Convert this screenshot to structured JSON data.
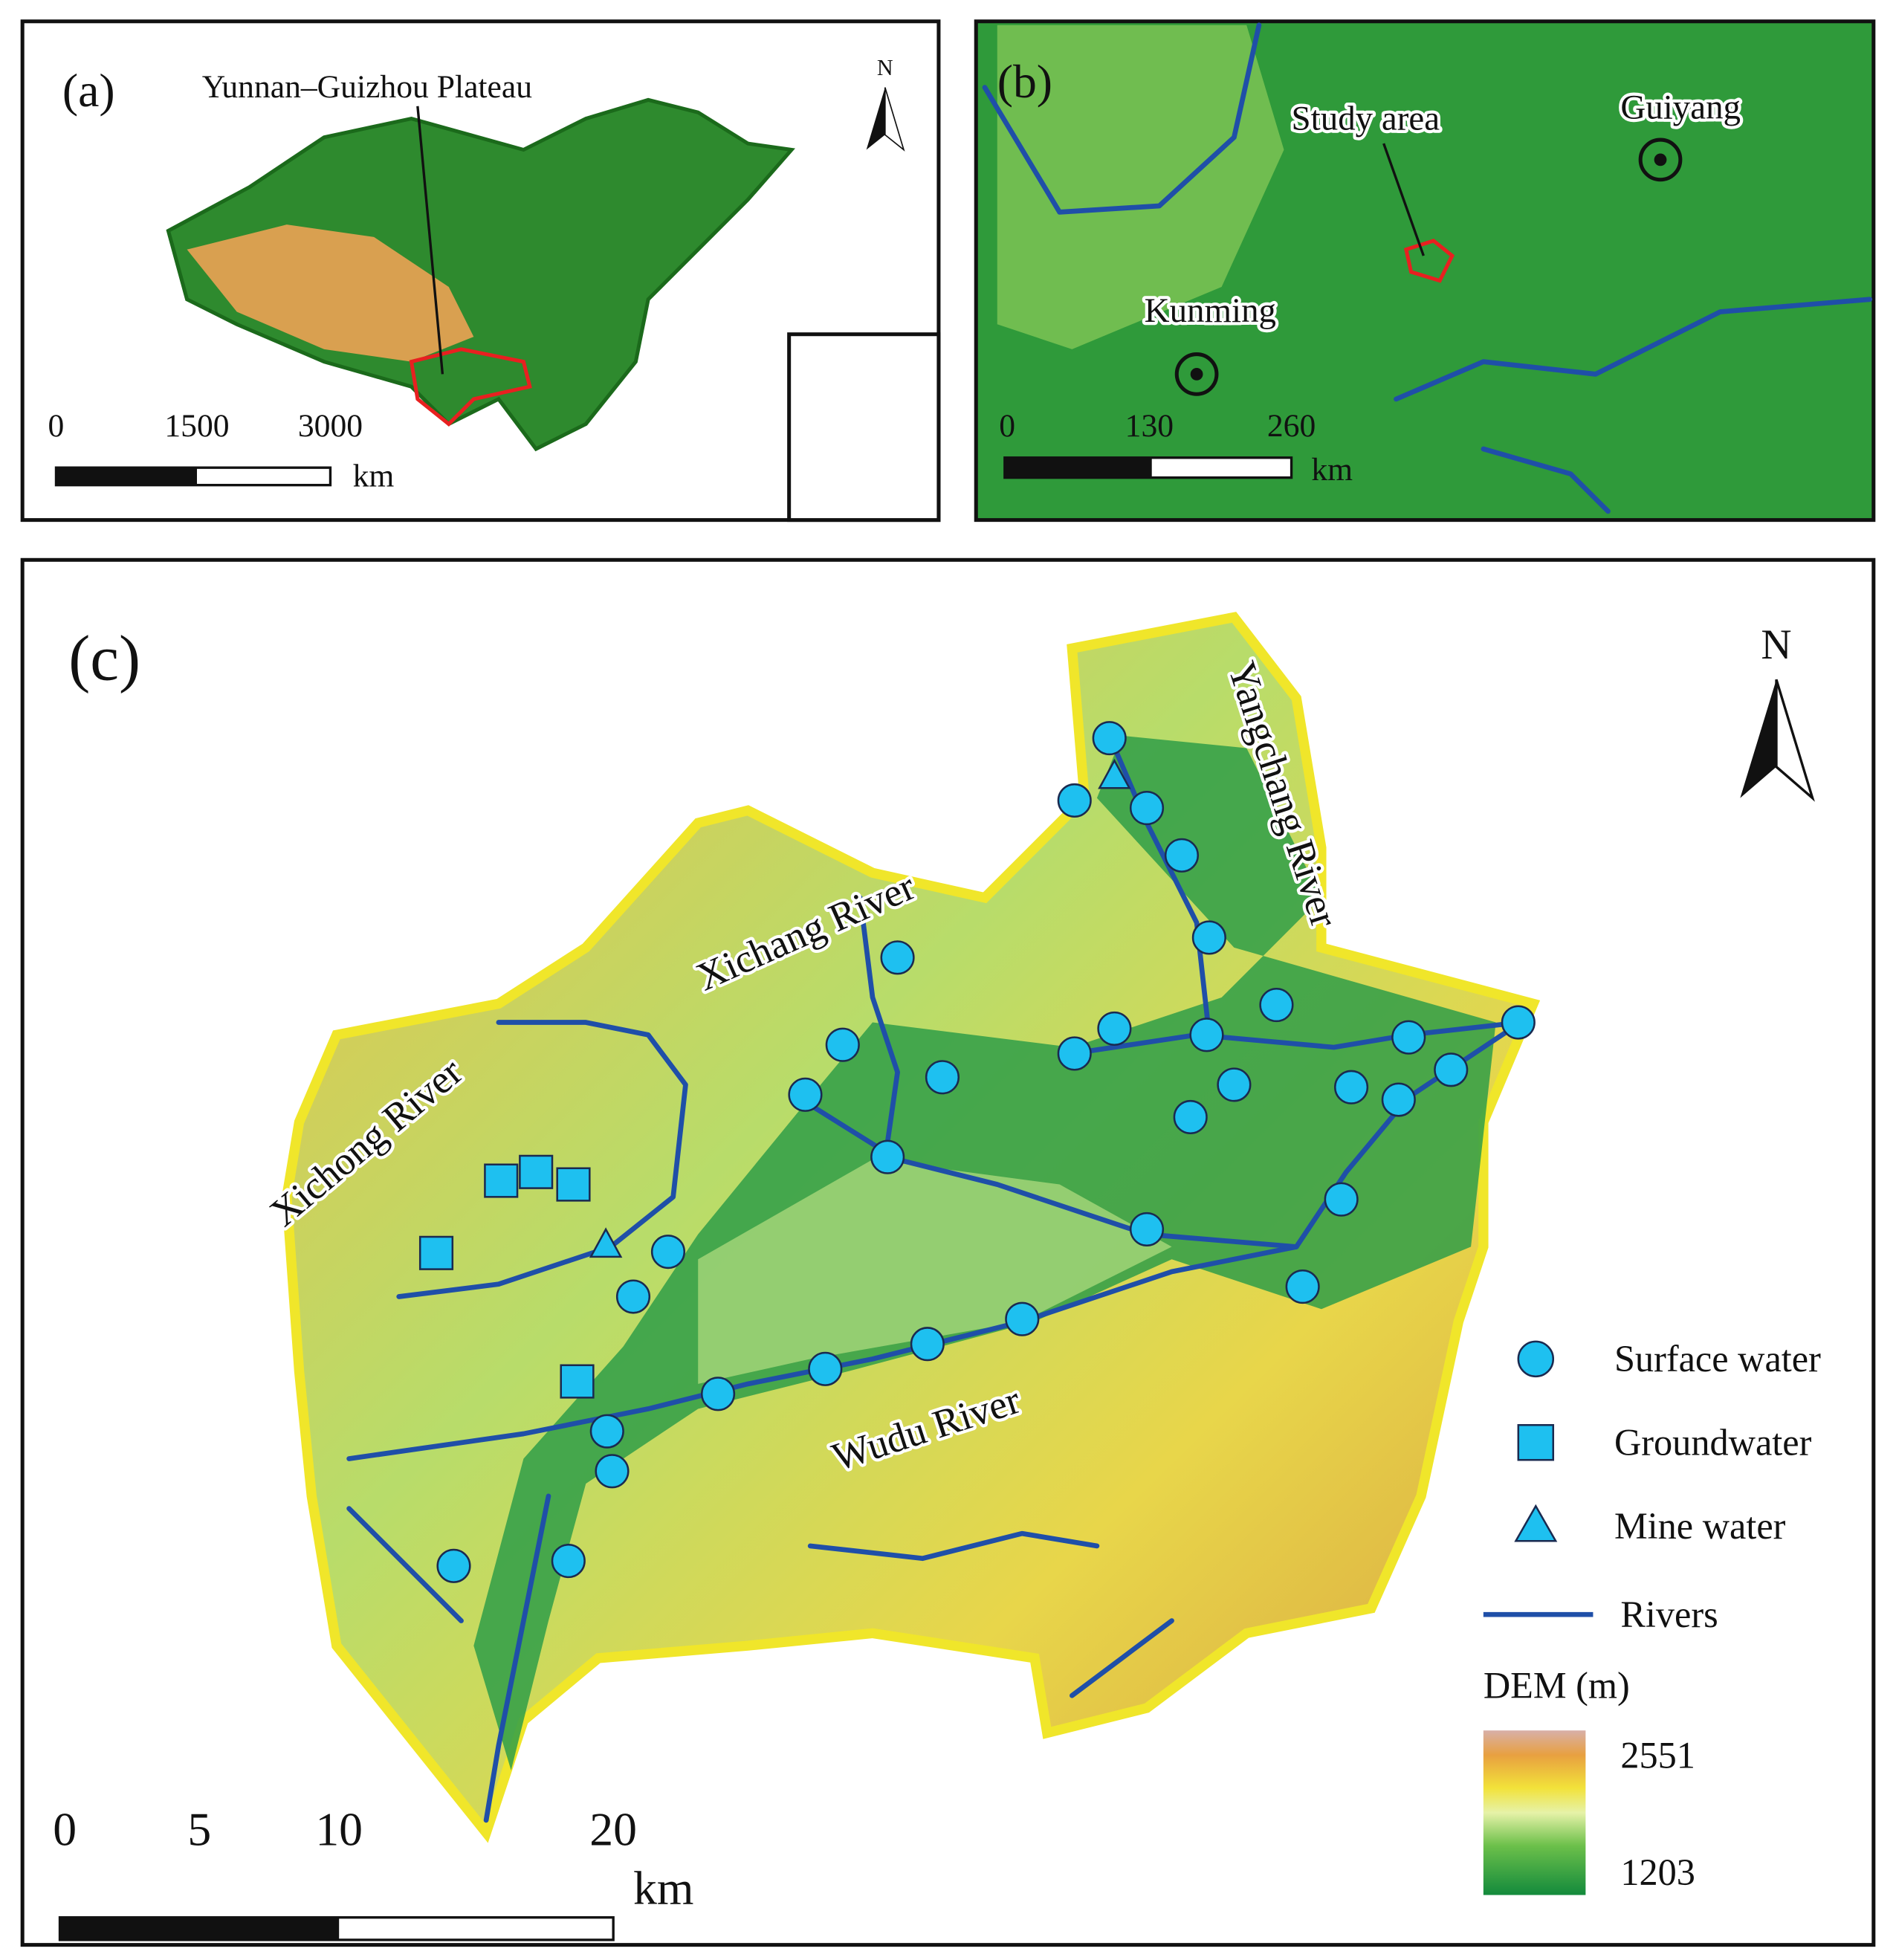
{
  "panel_a": {
    "label": "(a)",
    "region_label": "Yunnan–Guizhou Plateau",
    "north": "N",
    "scale": {
      "ticks": [
        "0",
        "1500",
        "3000"
      ],
      "unit": "km"
    }
  },
  "panel_b": {
    "label": "(b)",
    "places": [
      "Study area",
      "Guiyang",
      "Kunming"
    ],
    "scale": {
      "ticks": [
        "0",
        "130",
        "260"
      ],
      "unit": "km"
    }
  },
  "panel_c": {
    "label": "(c)",
    "north": "N",
    "rivers": [
      "Xichang River",
      "Yangchang River",
      "Xichong River",
      "Wudu River"
    ],
    "legend": [
      "Surface water",
      "Groundwater",
      "Mine water",
      "Rivers"
    ],
    "dem_title": "DEM (m)",
    "dem_max": "2551",
    "dem_min": "1203",
    "scale": {
      "ticks": [
        "0",
        "5",
        "10",
        "20"
      ],
      "unit": "km"
    }
  }
}
